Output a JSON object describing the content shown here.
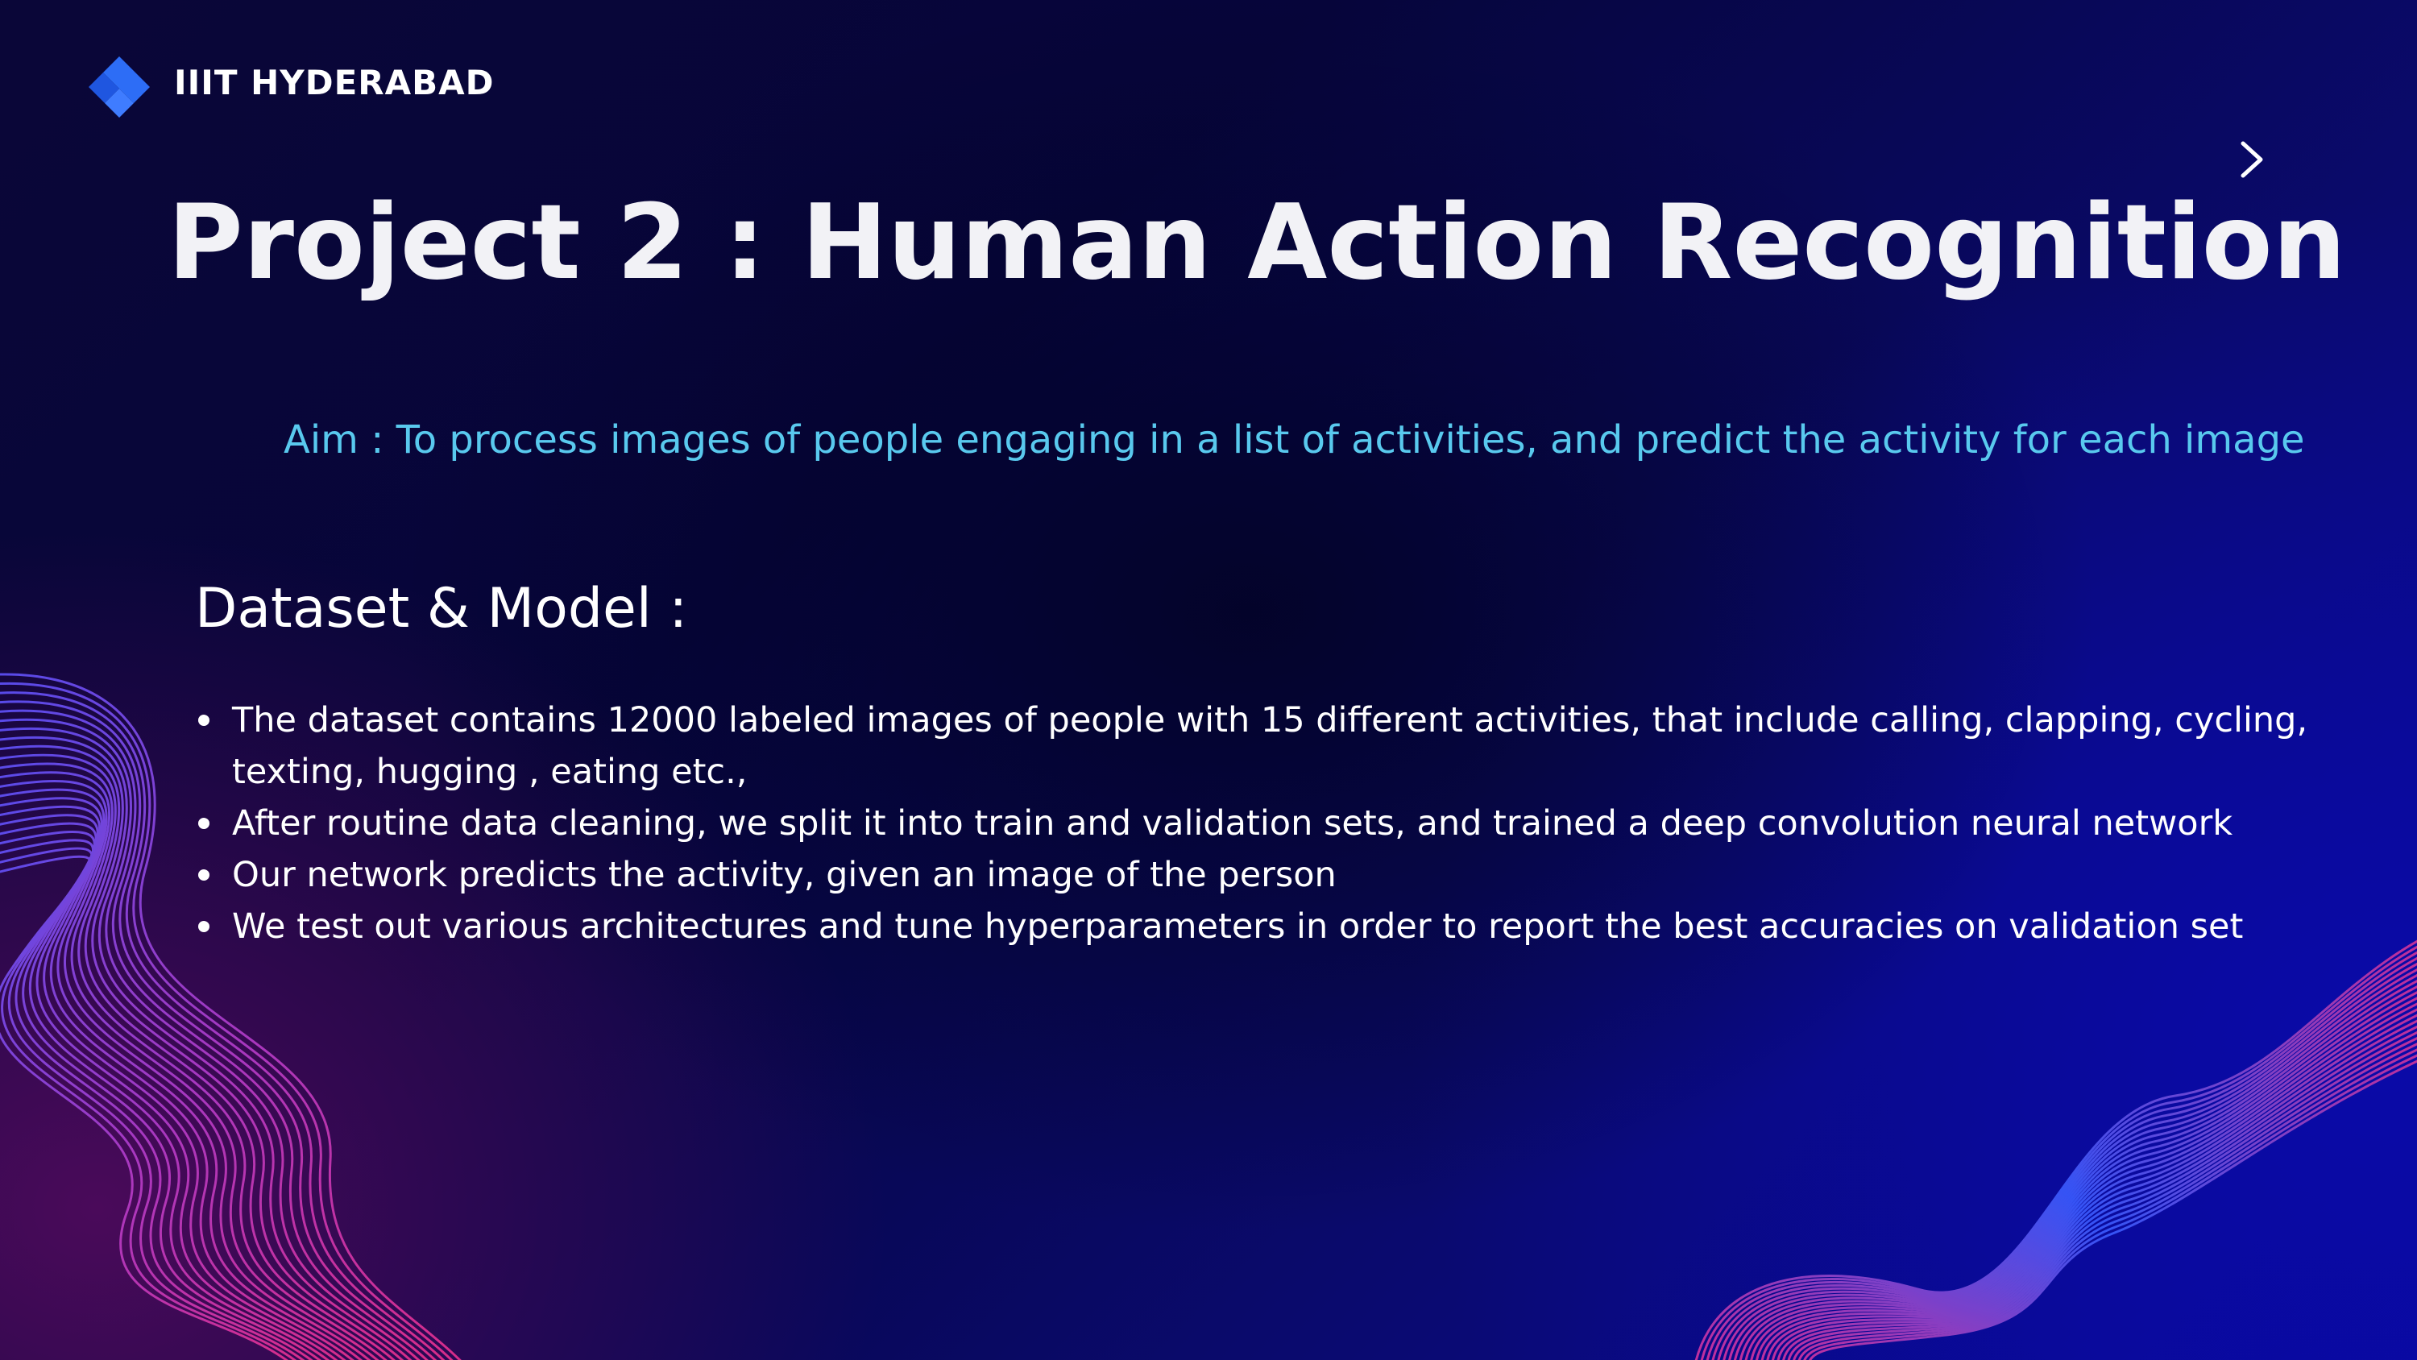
{
  "slide": {
    "brand": "IIIT HYDERABAD",
    "title": "Project 2 : Human Action Recognition",
    "aim": "Aim : To  process images of people engaging in a list of activities, and predict the activity for each image",
    "section_heading": "Dataset & Model :",
    "bullets": [
      "The dataset contains 12000 labeled images of people with 15 different activities, that include calling, clapping, cycling, texting, hugging , eating etc.,",
      "After routine data cleaning, we split it into train and validation sets, and trained a deep convolution neural network",
      "Our network predicts the activity, given an image of the person",
      "We test out various architectures and tune hyperparameters in order to report the best accuracies on validation set"
    ]
  },
  "icons": {
    "logo": "diamond-logo-icon",
    "next": "chevron-right-icon"
  },
  "colors": {
    "title": "#f2f2f6",
    "aim_text": "#59c9ee",
    "logo_blue": "#2d6df6",
    "wave_left": "#d0389e",
    "wave_right": "#3a5cff"
  }
}
